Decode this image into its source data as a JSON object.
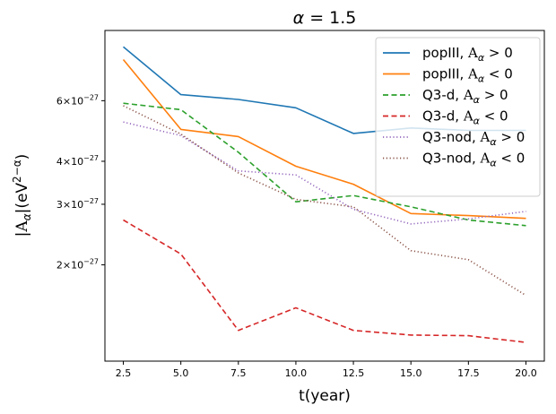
{
  "chart_data": {
    "type": "line",
    "title": "α = 1.5",
    "xlabel": "t(year)",
    "ylabel": "|A_α|(eV^{2−α})",
    "yscale": "log",
    "x": [
      2.5,
      5.0,
      7.5,
      10.0,
      12.5,
      15.0,
      17.5,
      20.0
    ],
    "xlim": [
      1.7,
      20.8
    ],
    "ylim": [
      1.05e-27,
      9.6e-27
    ],
    "xticks": [
      2.5,
      5.0,
      7.5,
      10.0,
      12.5,
      15.0,
      17.5,
      20.0
    ],
    "xtick_labels": [
      "2.5",
      "5.0",
      "7.5",
      "10.0",
      "12.5",
      "15.0",
      "17.5",
      "20.0"
    ],
    "yticks": [
      2e-27,
      3e-27,
      4e-27,
      6e-27
    ],
    "ytick_labels": [
      {
        "mantissa": "2",
        "base": "10",
        "exp": "−27"
      },
      {
        "mantissa": "3",
        "base": "10",
        "exp": "−27"
      },
      {
        "mantissa": "4",
        "base": "10",
        "exp": "−27"
      },
      {
        "mantissa": "6",
        "base": "10",
        "exp": "−27"
      }
    ],
    "grid": false,
    "legend_position": "top-right",
    "series": [
      {
        "name": "popIII, A_α > 0",
        "label_main": "popIII,",
        "label_rel": "> 0",
        "color": "#1f77b4",
        "style": "solid",
        "values": [
          8.6e-27,
          6.25e-27,
          6.05e-27,
          5.72e-27,
          4.82e-27,
          5e-27,
          4.92e-27,
          4.92e-27
        ]
      },
      {
        "name": "popIII, A_α < 0",
        "label_main": "popIII,",
        "label_rel": "< 0",
        "color": "#ff7f0e",
        "style": "solid",
        "values": [
          7.9e-27,
          4.95e-27,
          4.72e-27,
          3.87e-27,
          3.43e-27,
          2.82e-27,
          2.78e-27,
          2.73e-27
        ]
      },
      {
        "name": "Q3-d, A_α > 0",
        "label_main": "Q3-d,",
        "label_rel": "> 0",
        "color": "#2ca02c",
        "style": "dashed",
        "values": [
          5.9e-27,
          5.65e-27,
          4.25e-27,
          3.05e-27,
          3.18e-27,
          2.95e-27,
          2.7e-27,
          2.6e-27
        ]
      },
      {
        "name": "Q3-d, A_α < 0",
        "label_main": "Q3-d,",
        "label_rel": "< 0",
        "color": "#d62728",
        "style": "dashed",
        "values": [
          2.7e-27,
          2.15e-27,
          1.29e-27,
          1.5e-27,
          1.29e-27,
          1.25e-27,
          1.245e-27,
          1.19e-27
        ]
      },
      {
        "name": "Q3-nod, A_α > 0",
        "label_main": "Q3-nod,",
        "label_rel": "> 0",
        "color": "#9467bd",
        "style": "dotted",
        "values": [
          5.2e-27,
          4.75e-27,
          3.75e-27,
          3.65e-27,
          2.9e-27,
          2.63e-27,
          2.72e-27,
          2.86e-27
        ]
      },
      {
        "name": "Q3-nod, A_α < 0",
        "label_main": "Q3-nod,",
        "label_rel": "< 0",
        "color": "#8c564b",
        "style": "dotted",
        "values": [
          5.8e-27,
          4.8e-27,
          3.7e-27,
          3.1e-27,
          2.95e-27,
          2.2e-27,
          2.07e-27,
          1.63e-27
        ]
      }
    ]
  }
}
